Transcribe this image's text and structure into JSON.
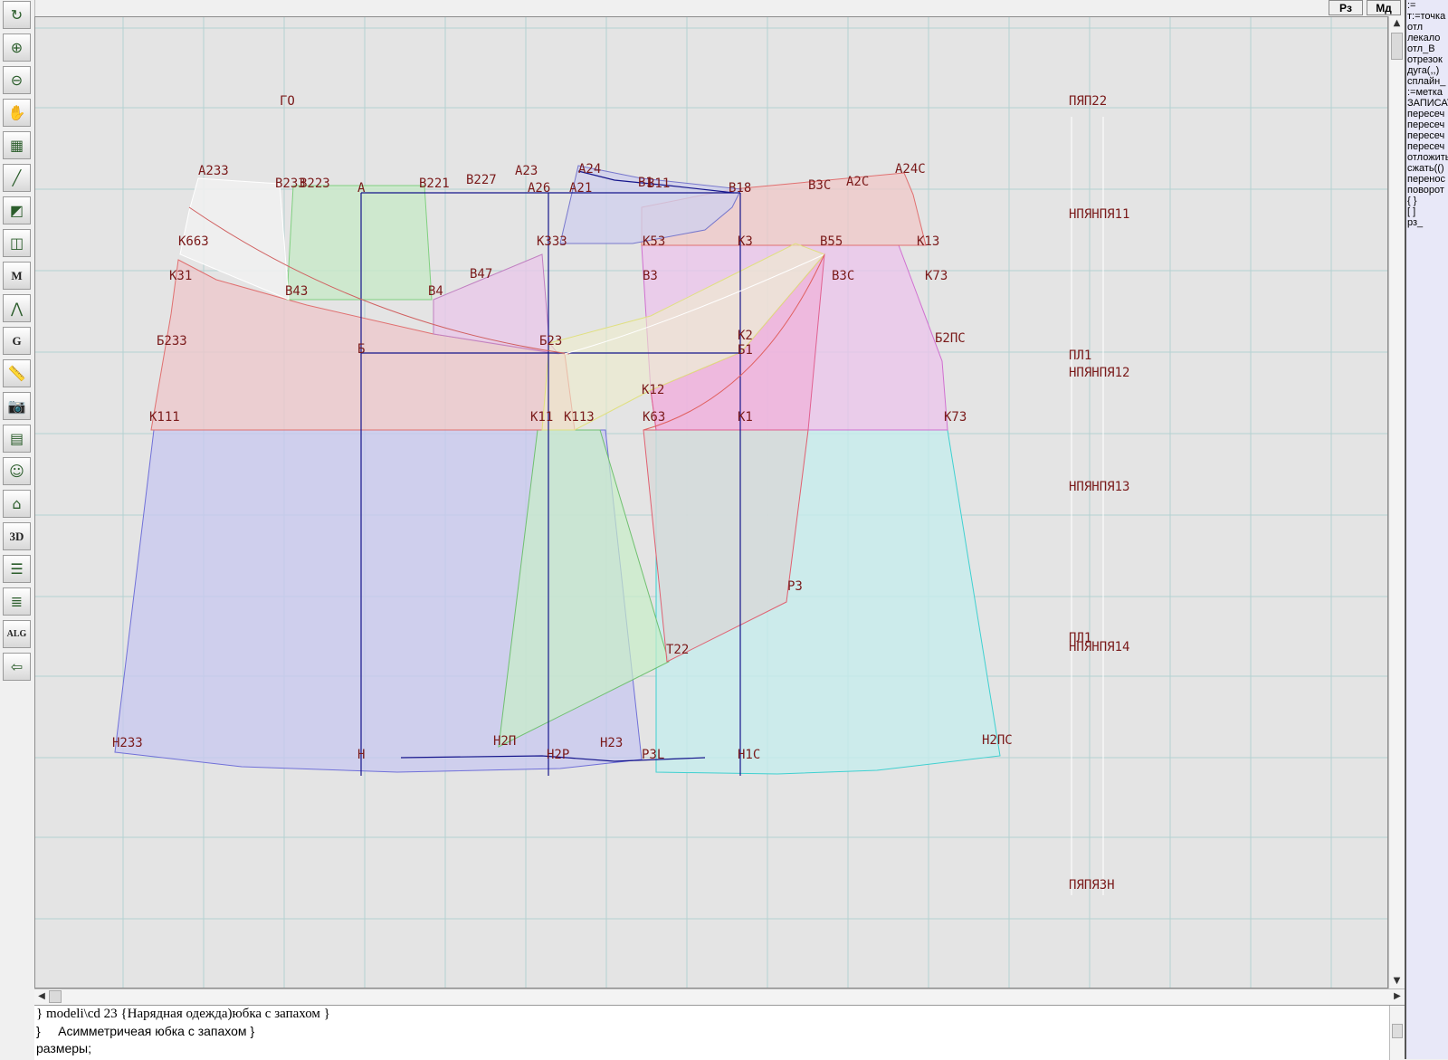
{
  "toolbar": {
    "tools": [
      {
        "name": "refresh-icon",
        "glyph": "↻"
      },
      {
        "name": "zoom-in-icon",
        "glyph": "⊕"
      },
      {
        "name": "zoom-out-icon",
        "glyph": "⊖"
      },
      {
        "name": "pan-icon",
        "glyph": "✋"
      },
      {
        "name": "grid-icon",
        "glyph": "▦"
      },
      {
        "name": "line-tool-icon",
        "glyph": "╱"
      },
      {
        "name": "map-icon",
        "glyph": "◩"
      },
      {
        "name": "pattern-icon",
        "glyph": "◫"
      },
      {
        "name": "measure-m-icon",
        "glyph": "M"
      },
      {
        "name": "compass-icon",
        "glyph": "⋀"
      },
      {
        "name": "curve-g-icon",
        "glyph": "G"
      },
      {
        "name": "ruler-icon",
        "glyph": "📏"
      },
      {
        "name": "camera-icon",
        "glyph": "📷"
      },
      {
        "name": "document-icon",
        "glyph": "▤"
      },
      {
        "name": "face-icon",
        "glyph": "☺"
      },
      {
        "name": "garment-icon",
        "glyph": "⌂"
      },
      {
        "name": "3d-icon",
        "glyph": "3D"
      },
      {
        "name": "sheets-icon",
        "glyph": "☰"
      },
      {
        "name": "stack-icon",
        "glyph": "≣"
      },
      {
        "name": "alg-icon",
        "glyph": "ALG"
      },
      {
        "name": "exit-icon",
        "glyph": "⇦"
      }
    ]
  },
  "top_buttons": {
    "rz": "Рз",
    "md": "Мд"
  },
  "canvas": {
    "labels": [
      {
        "t": "ГО"
      },
      {
        "t": "А233"
      },
      {
        "t": "В233"
      },
      {
        "t": "В223"
      },
      {
        "t": "А"
      },
      {
        "t": "В221"
      },
      {
        "t": "В227"
      },
      {
        "t": "А23"
      },
      {
        "t": "А24"
      },
      {
        "t": "А26"
      },
      {
        "t": "А21"
      },
      {
        "t": "В1"
      },
      {
        "t": "В11"
      },
      {
        "t": "В18"
      },
      {
        "t": "В3С"
      },
      {
        "t": "А2С"
      },
      {
        "t": "А24С"
      },
      {
        "t": "К663"
      },
      {
        "t": "К333"
      },
      {
        "t": "К53"
      },
      {
        "t": "К3"
      },
      {
        "t": "В55"
      },
      {
        "t": "К13"
      },
      {
        "t": "К31"
      },
      {
        "t": "В47"
      },
      {
        "t": "В3"
      },
      {
        "t": "В3С"
      },
      {
        "t": "К73"
      },
      {
        "t": "В43"
      },
      {
        "t": "В4"
      },
      {
        "t": "Б233"
      },
      {
        "t": "Б"
      },
      {
        "t": "Б23"
      },
      {
        "t": "К2"
      },
      {
        "t": "Б1"
      },
      {
        "t": "Б2ПС"
      },
      {
        "t": "К12"
      },
      {
        "t": "К111"
      },
      {
        "t": "К11"
      },
      {
        "t": "К113"
      },
      {
        "t": "К63"
      },
      {
        "t": "К1"
      },
      {
        "t": "К73"
      },
      {
        "t": "Р3"
      },
      {
        "t": "Т22"
      },
      {
        "t": "Н233"
      },
      {
        "t": "Н2П"
      },
      {
        "t": "Н23"
      },
      {
        "t": "Н"
      },
      {
        "t": "Н2Р"
      },
      {
        "t": "Р3L"
      },
      {
        "t": "Н1С"
      },
      {
        "t": "Н2ПС"
      },
      {
        "t": "ПЯП22"
      },
      {
        "t": "НПЯНПЯ11"
      },
      {
        "t": "ПЛ1"
      },
      {
        "t": "НПЯНПЯ12"
      },
      {
        "t": "НПЯНПЯ13"
      },
      {
        "t": "ПЛ1"
      },
      {
        "t": "НПЯНПЯ14"
      },
      {
        "t": "ПЯПЯ3Н"
      }
    ]
  },
  "right_panel": {
    "lines": [
      ":=",
      "т:=точка",
      "отл",
      "лекало",
      "отл_В",
      "отрезок",
      "дуга(,,)",
      "сплайн_",
      ":=метка",
      "ЗАПИСАТЬ",
      "пересеч",
      "пересеч",
      "пересеч",
      "пересеч",
      "отложить",
      "сжать(()",
      "перенос",
      "поворот",
      "{ }",
      "[ ]",
      "рз_"
    ]
  },
  "console": {
    "lines": [
      "} modeli\\cd 23 {Нарядная одежда)юбка с запахом }",
      "}     Асимметричеая юбка с запахом }",
      "размеры;"
    ]
  },
  "colors": {
    "grid": "#b4d2d2",
    "label": "#7a1a1a",
    "axis": "#16168c"
  }
}
